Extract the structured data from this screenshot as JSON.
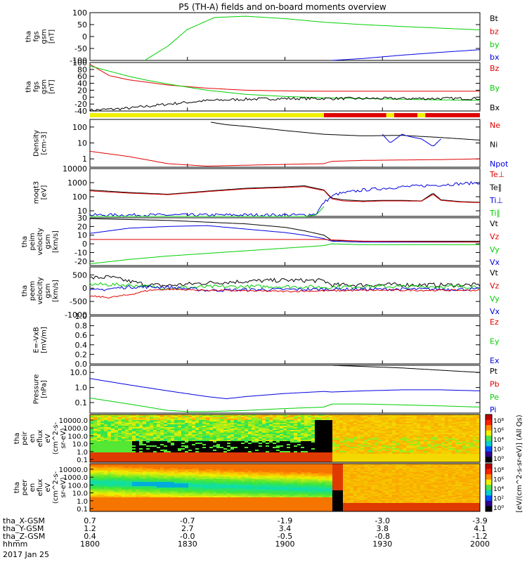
{
  "title": "P5 (TH-A) fields and on-board moments overview",
  "colors": {
    "black": "#000000",
    "red": "#e00000",
    "green": "#00d000",
    "blue": "#0000e0",
    "yellow": "#f0f000"
  },
  "chart_data": [
    {
      "type": "line",
      "id": "p1",
      "ylabel": [
        "tha",
        "fgs",
        "gsm",
        "[nT]"
      ],
      "yticks": [
        "100",
        "50",
        "0",
        "-50",
        "-100"
      ],
      "ylim": [
        -100,
        100
      ],
      "legend": [
        {
          "name": "Bt",
          "color": "black"
        },
        {
          "name": "bz",
          "color": "red"
        },
        {
          "name": "by",
          "color": "green"
        },
        {
          "name": "bx",
          "color": "blue"
        }
      ],
      "series": [
        {
          "name": "by",
          "color": "green",
          "x": [
            0.14,
            0.2,
            0.25,
            0.32,
            0.4,
            0.5,
            0.6,
            0.7,
            0.8,
            0.9,
            1.0
          ],
          "y": [
            -100,
            -40,
            30,
            80,
            85,
            75,
            60,
            50,
            42,
            35,
            28
          ]
        },
        {
          "name": "bx",
          "color": "blue",
          "x": [
            0.62,
            0.7,
            0.8,
            0.9,
            1.0
          ],
          "y": [
            -100,
            -92,
            -78,
            -66,
            -55
          ]
        }
      ]
    },
    {
      "type": "line",
      "id": "p2",
      "ylabel": [
        "tha",
        "fgs",
        "gsm",
        "[nT]"
      ],
      "yticks": [
        "100",
        "80",
        "60",
        "40",
        "20",
        "0",
        "-20",
        "-40"
      ],
      "ylim": [
        -40,
        100
      ],
      "legend": [
        {
          "name": "Bz",
          "color": "red"
        },
        {
          "name": "By",
          "color": "green"
        },
        {
          "name": "Bx",
          "color": "black"
        }
      ],
      "series": [
        {
          "name": "Bz",
          "color": "red",
          "x": [
            0,
            0.05,
            0.1,
            0.2,
            0.3,
            0.4,
            0.5,
            0.6,
            0.7,
            0.8,
            0.9,
            1.0
          ],
          "y": [
            95,
            62,
            50,
            35,
            26,
            20,
            18,
            17,
            17,
            17,
            17,
            17
          ]
        },
        {
          "name": "By",
          "color": "green",
          "x": [
            0,
            0.05,
            0.1,
            0.15,
            0.2,
            0.3,
            0.4,
            0.5,
            0.6,
            0.7,
            0.8,
            0.9,
            1.0
          ],
          "y": [
            90,
            75,
            60,
            48,
            38,
            20,
            8,
            2,
            -2,
            -4,
            -6,
            -8,
            -9
          ]
        },
        {
          "name": "Bx",
          "color": "black",
          "x": [
            0,
            0.1,
            0.2,
            0.3,
            0.4,
            0.5,
            0.6,
            0.7,
            0.8,
            0.9,
            1.0
          ],
          "y": [
            -38,
            -32,
            -20,
            -10,
            -6,
            -4,
            -4,
            -4,
            -4,
            -4,
            -4
          ],
          "noise": 4
        }
      ]
    },
    {
      "type": "band",
      "id": "mode",
      "segments": [
        {
          "x0": 0,
          "x1": 0.6,
          "color": "yellow"
        },
        {
          "x0": 0.6,
          "x1": 0.76,
          "color": "red"
        },
        {
          "x0": 0.76,
          "x1": 0.78,
          "color": "yellow"
        },
        {
          "x0": 0.78,
          "x1": 0.84,
          "color": "red"
        },
        {
          "x0": 0.84,
          "x1": 0.86,
          "color": "yellow"
        },
        {
          "x0": 0.86,
          "x1": 1.0,
          "color": "red"
        }
      ]
    },
    {
      "type": "line",
      "id": "p3",
      "log": true,
      "ylabel": [
        "Density",
        "[cm-3]"
      ],
      "yticks": [
        "100",
        "10",
        "1"
      ],
      "ylim": [
        0.3,
        300
      ],
      "legend": [
        {
          "name": "Ne",
          "color": "red"
        },
        {
          "name": "Ni",
          "color": "black"
        },
        {
          "name": "Npot",
          "color": "blue"
        }
      ],
      "series": [
        {
          "name": "Ni",
          "color": "black",
          "x": [
            0.31,
            0.35,
            0.4,
            0.5,
            0.6,
            0.7,
            0.8,
            0.9,
            1.0
          ],
          "y": [
            200,
            140,
            110,
            60,
            35,
            28,
            30,
            22,
            15
          ]
        },
        {
          "name": "Ne",
          "color": "red",
          "x": [
            0,
            0.1,
            0.2,
            0.3,
            0.4,
            0.5,
            0.6,
            0.62,
            0.7,
            0.8,
            0.9,
            1.0
          ],
          "y": [
            3,
            1.4,
            0.5,
            0.35,
            0.4,
            0.45,
            0.5,
            0.7,
            0.8,
            0.85,
            0.9,
            1.0
          ]
        },
        {
          "name": "Npot",
          "color": "blue",
          "x": [
            0.75,
            0.77,
            0.8,
            0.82,
            0.85,
            0.88,
            0.9
          ],
          "y": [
            35,
            10,
            35,
            25,
            18,
            6,
            18
          ]
        }
      ]
    },
    {
      "type": "line",
      "id": "p4",
      "log": true,
      "ylabel": [
        "moqt3",
        "[eV]"
      ],
      "yticks": [
        "10000",
        "1000",
        "100",
        "10"
      ],
      "ylim": [
        4,
        10000
      ],
      "legend": [
        {
          "name": "Te⊥",
          "color": "red"
        },
        {
          "name": "Te∥",
          "color": "black"
        },
        {
          "name": "Ti⊥",
          "color": "blue"
        },
        {
          "name": "Ti∥",
          "color": "green"
        }
      ],
      "series": [
        {
          "name": "Te∥",
          "color": "black",
          "x": [
            0,
            0.1,
            0.2,
            0.3,
            0.4,
            0.5,
            0.55,
            0.58,
            0.6,
            0.62,
            0.65,
            0.7,
            0.75,
            0.8,
            0.85,
            0.88,
            0.9,
            0.95,
            1.0
          ],
          "y": [
            300,
            200,
            150,
            250,
            400,
            500,
            600,
            400,
            300,
            80,
            60,
            50,
            55,
            55,
            50,
            180,
            60,
            45,
            40
          ]
        },
        {
          "name": "Te⊥",
          "color": "red",
          "x": [
            0,
            0.1,
            0.2,
            0.3,
            0.4,
            0.5,
            0.55,
            0.58,
            0.6,
            0.62,
            0.65,
            0.7,
            0.75,
            0.8,
            0.85,
            0.88,
            0.9,
            0.95,
            1.0
          ],
          "y": [
            260,
            180,
            140,
            230,
            360,
            450,
            520,
            350,
            280,
            70,
            50,
            45,
            50,
            50,
            48,
            150,
            55,
            42,
            38
          ]
        },
        {
          "name": "Ti⊥",
          "color": "blue",
          "x": [
            0,
            0.2,
            0.4,
            0.5,
            0.55,
            0.58,
            0.6,
            0.63,
            0.7,
            0.8,
            0.9,
            1.0
          ],
          "y": [
            5,
            5,
            5,
            5,
            5,
            6,
            40,
            150,
            300,
            500,
            700,
            1000
          ],
          "noise": 0.25
        },
        {
          "name": "Ti∥",
          "color": "green",
          "x": [
            0,
            0.2,
            0.4,
            0.55,
            0.58,
            0.6
          ],
          "y": [
            4,
            4,
            4,
            4,
            5,
            20
          ]
        }
      ]
    },
    {
      "type": "line",
      "id": "p5",
      "ylabel": [
        "tha",
        "peim",
        "velocity",
        "gsm",
        "[km/s]"
      ],
      "yticks": [
        "30",
        "20",
        "10",
        "0",
        "-10",
        "-20"
      ],
      "ylim": [
        -25,
        30
      ],
      "legend": [
        {
          "name": "Vt",
          "color": "black"
        },
        {
          "name": "Vz",
          "color": "red"
        },
        {
          "name": "Vy",
          "color": "green"
        },
        {
          "name": "Vx",
          "color": "blue"
        }
      ],
      "series": [
        {
          "name": "Vt",
          "color": "black",
          "x": [
            0,
            0.1,
            0.2,
            0.3,
            0.4,
            0.5,
            0.55,
            0.6,
            0.62,
            0.7,
            0.8,
            0.9,
            1.0
          ],
          "y": [
            29,
            28,
            27,
            25,
            23,
            19,
            15,
            10,
            4,
            3,
            3,
            3,
            3
          ]
        },
        {
          "name": "Vx",
          "color": "blue",
          "x": [
            0,
            0.05,
            0.1,
            0.2,
            0.3,
            0.4,
            0.5,
            0.55,
            0.6,
            0.62,
            0.7,
            1.0
          ],
          "y": [
            12,
            15,
            18,
            20,
            21,
            17,
            13,
            10,
            6,
            3,
            2,
            2
          ]
        },
        {
          "name": "Vz",
          "color": "red",
          "x": [
            0,
            0.2,
            0.4,
            0.6,
            0.7,
            1.0
          ],
          "y": [
            5,
            5,
            5,
            5,
            3,
            2
          ]
        },
        {
          "name": "Vy",
          "color": "green",
          "x": [
            0,
            0.1,
            0.2,
            0.3,
            0.4,
            0.5,
            0.6,
            0.62,
            0.7,
            1.0
          ],
          "y": [
            -23,
            -18,
            -14,
            -11,
            -8,
            -5,
            -2,
            0,
            -1,
            -1
          ]
        }
      ]
    },
    {
      "type": "line",
      "id": "p6",
      "ylabel": [
        "tha",
        "peem",
        "velocity",
        "gsm",
        "[km/s]"
      ],
      "yticks": [
        "500",
        "0",
        "-500",
        "-1000"
      ],
      "ylim": [
        -1000,
        800
      ],
      "legend": [
        {
          "name": "Vt",
          "color": "black"
        },
        {
          "name": "Vz",
          "color": "red"
        },
        {
          "name": "Vy",
          "color": "green"
        },
        {
          "name": "Vx",
          "color": "blue"
        }
      ],
      "series": [
        {
          "name": "Vt",
          "color": "black",
          "x": [
            0,
            0.05,
            0.1,
            0.15,
            0.2,
            0.3,
            0.4,
            0.5,
            0.6,
            0.62,
            0.7,
            0.8,
            0.9,
            1.0
          ],
          "y": [
            380,
            420,
            260,
            120,
            100,
            200,
            260,
            300,
            280,
            120,
            120,
            130,
            120,
            120
          ],
          "noise": 80
        },
        {
          "name": "Vy",
          "color": "green",
          "x": [
            0,
            0.1,
            0.2,
            0.3,
            0.4,
            0.5,
            0.6,
            0.7,
            0.8,
            0.9,
            1.0
          ],
          "y": [
            150,
            120,
            0,
            50,
            60,
            60,
            40,
            60,
            60,
            60,
            60
          ],
          "noise": 70
        },
        {
          "name": "Vx",
          "color": "blue",
          "x": [
            0,
            0.1,
            0.2,
            0.3,
            0.4,
            0.5,
            0.6,
            0.7,
            0.8,
            0.9,
            1.0
          ],
          "y": [
            -100,
            50,
            40,
            -80,
            -60,
            -50,
            -40,
            -40,
            -40,
            -40,
            -40
          ],
          "noise": 60
        },
        {
          "name": "Vz",
          "color": "red",
          "x": [
            0,
            0.05,
            0.1,
            0.15,
            0.2,
            0.3,
            0.4,
            0.5,
            0.6,
            0.7,
            0.8,
            0.9,
            1.0
          ],
          "y": [
            -300,
            -350,
            -250,
            -80,
            -40,
            -80,
            -100,
            -120,
            -100,
            -80,
            -80,
            -80,
            -80
          ],
          "noise": 30
        }
      ]
    },
    {
      "type": "line",
      "id": "p7",
      "ylabel": [
        "E=-VxB",
        "[mV/m]"
      ],
      "yticks": [
        "1.0",
        "0.8",
        "0.6",
        "0.4",
        "0.2",
        "0.0"
      ],
      "ylim": [
        0,
        1
      ],
      "legend": [
        {
          "name": "Ez",
          "color": "red"
        },
        {
          "name": "Ey",
          "color": "green"
        },
        {
          "name": "Ex",
          "color": "blue"
        }
      ],
      "series": []
    },
    {
      "type": "line",
      "id": "p8",
      "log": true,
      "ylabel": [
        "Pressure",
        "[nPa]"
      ],
      "yticks": [
        "10.0",
        "1.0",
        "0.1"
      ],
      "ylim": [
        0.02,
        30
      ],
      "legend": [
        {
          "name": "Pt",
          "color": "black"
        },
        {
          "name": "Pb",
          "color": "red"
        },
        {
          "name": "Pe",
          "color": "green"
        },
        {
          "name": "Pi",
          "color": "blue"
        }
      ],
      "series": [
        {
          "name": "Pt",
          "color": "black",
          "x": [
            0.62,
            0.8,
            1.0
          ],
          "y": [
            30,
            20,
            10
          ]
        },
        {
          "name": "Pi",
          "color": "blue",
          "x": [
            0,
            0.1,
            0.2,
            0.3,
            0.35,
            0.4,
            0.5,
            0.6,
            0.62,
            0.7,
            0.8,
            0.9,
            1.0
          ],
          "y": [
            4,
            1.5,
            0.6,
            0.25,
            0.18,
            0.25,
            0.4,
            0.55,
            0.5,
            0.6,
            0.7,
            0.7,
            0.6
          ]
        },
        {
          "name": "Pe",
          "color": "green",
          "x": [
            0,
            0.1,
            0.2,
            0.25,
            0.3,
            0.4,
            0.5,
            0.6,
            0.62,
            0.7,
            0.8,
            0.9,
            1.0
          ],
          "y": [
            0.2,
            0.08,
            0.03,
            0.025,
            0.025,
            0.03,
            0.04,
            0.05,
            0.08,
            0.08,
            0.07,
            0.06,
            0.05
          ]
        }
      ]
    },
    {
      "type": "heatmap",
      "id": "p9",
      "ylabel": [
        "tha",
        "peir",
        "en",
        "eflux",
        "eV",
        "(cm^2-s-",
        "sr-eV)"
      ],
      "yticks": [
        "10000.0",
        "1000.0",
        "100.0",
        "10.0",
        "1.0",
        "0.1"
      ]
    },
    {
      "type": "heatmap",
      "id": "p10",
      "ylabel": [
        "tha",
        "peer",
        "en",
        "eflux",
        "eV",
        "(cm^2-s-",
        "sr-eV)"
      ],
      "yticks": [
        "10000.0",
        "1000.0",
        "100.0",
        "10.0",
        "1.0",
        "0.1"
      ]
    }
  ],
  "colorbar": {
    "label": "[eV/(cm^2-s-sr-eV)] (All Qs)",
    "ticks": [
      "10⁸",
      "10⁶",
      "10⁴",
      "10²",
      "10⁰"
    ],
    "ticks2": [
      "10⁸",
      "10⁶",
      "10⁴",
      "10²",
      "10⁰"
    ]
  },
  "xaxis": {
    "rows": [
      {
        "label": "tha_X-GSM",
        "values": [
          "0.7",
          "-0.7",
          "-1.9",
          "-3.0",
          "-3.9"
        ]
      },
      {
        "label": "tha_Y-GSM",
        "values": [
          "1.2",
          "2.7",
          "3.4",
          "3.8",
          "4.1"
        ]
      },
      {
        "label": "tha_Z-GSM",
        "values": [
          "0.4",
          "-0.0",
          "-0.5",
          "-0.8",
          "-1.2"
        ]
      },
      {
        "label": "hhmm",
        "values": [
          "1800",
          "1830",
          "1900",
          "1930",
          "2000"
        ]
      }
    ],
    "date": "2017 Jan 25"
  }
}
